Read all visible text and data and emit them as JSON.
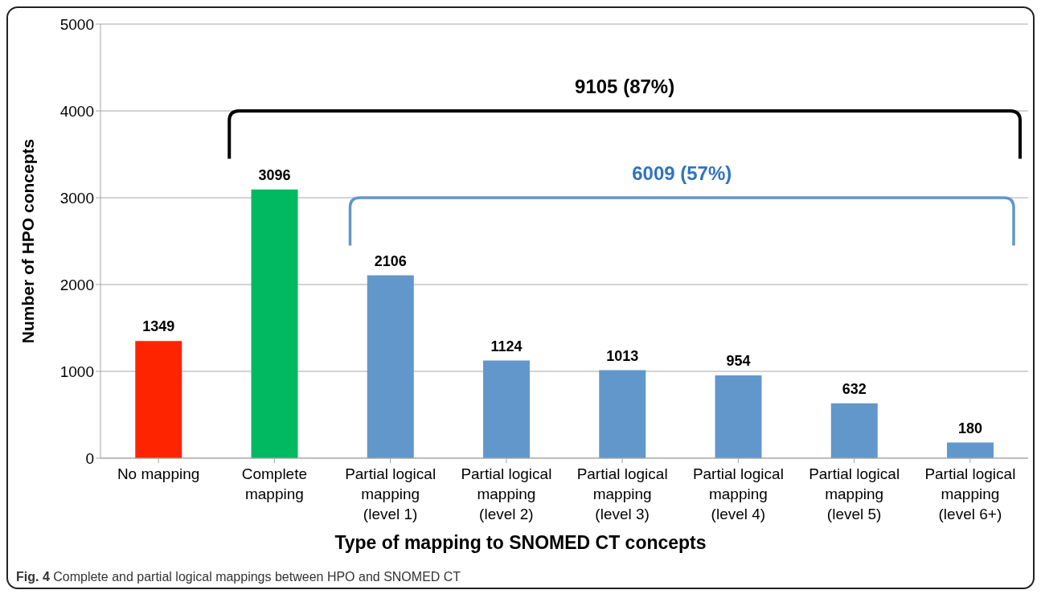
{
  "chart_data": {
    "type": "bar",
    "xlabel": "Type of mapping to SNOMED CT concepts",
    "ylabel": "Number of HPO concepts",
    "categories": [
      "No mapping",
      "Complete mapping",
      "Partial logical mapping (level 1)",
      "Partial logical mapping (level 2)",
      "Partial logical mapping (level 3)",
      "Partial logical mapping (level 4)",
      "Partial logical mapping (level 5)",
      "Partial logical mapping (level 6+)"
    ],
    "values": [
      1349,
      3096,
      2106,
      1124,
      1013,
      954,
      632,
      180
    ],
    "colors": [
      "#ff2400",
      "#00b960",
      "#6297cb",
      "#6297cb",
      "#6297cb",
      "#6297cb",
      "#6297cb",
      "#6297cb"
    ],
    "data_labels": true,
    "ylim": [
      0,
      5000
    ],
    "yticks": [
      0,
      1000,
      2000,
      3000,
      4000,
      5000
    ],
    "grid": "y",
    "annotations": [
      "9105 (87%)",
      "6009 (57%)",
      "Fig. 4 Complete and partial logical mappings between HPO and SNOMED CT"
    ]
  }
}
